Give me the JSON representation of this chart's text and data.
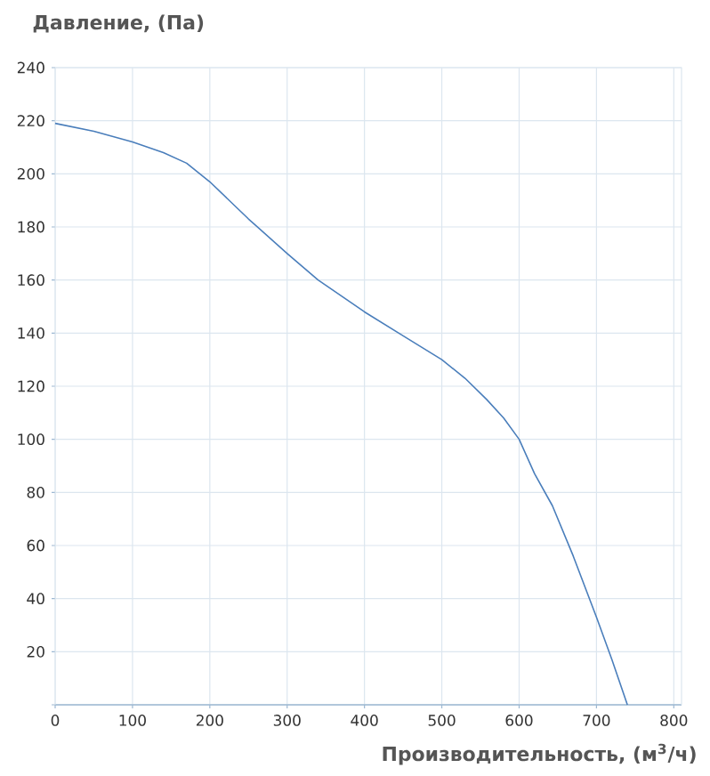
{
  "chart_data": {
    "type": "line",
    "title": "Давление, (Па)",
    "xlabel": "Производительность, (м$^{3}$/ч)",
    "x": [
      0,
      50,
      100,
      140,
      170,
      200,
      250,
      300,
      340,
      400,
      450,
      500,
      530,
      558,
      580,
      600,
      620,
      643,
      670,
      700,
      720,
      740
    ],
    "series": [
      {
        "color": "#4a7ebb",
        "values": [
          219,
          216,
          212,
          208,
          204,
          197,
          183,
          170,
          160,
          148,
          139,
          130,
          123,
          115,
          108,
          100,
          87,
          75,
          56,
          33,
          17,
          0
        ]
      }
    ],
    "xlim": [
      0,
      810
    ],
    "ylim": [
      0,
      240
    ],
    "xticks": [
      0,
      100,
      200,
      300,
      400,
      500,
      600,
      700,
      800
    ],
    "yticks": [
      {
        "value": 0,
        "label": null
      },
      20,
      40,
      60,
      80,
      100,
      120,
      140,
      160,
      180,
      200,
      220,
      240
    ],
    "grid": true,
    "marker": "none",
    "line_style": "solid"
  }
}
